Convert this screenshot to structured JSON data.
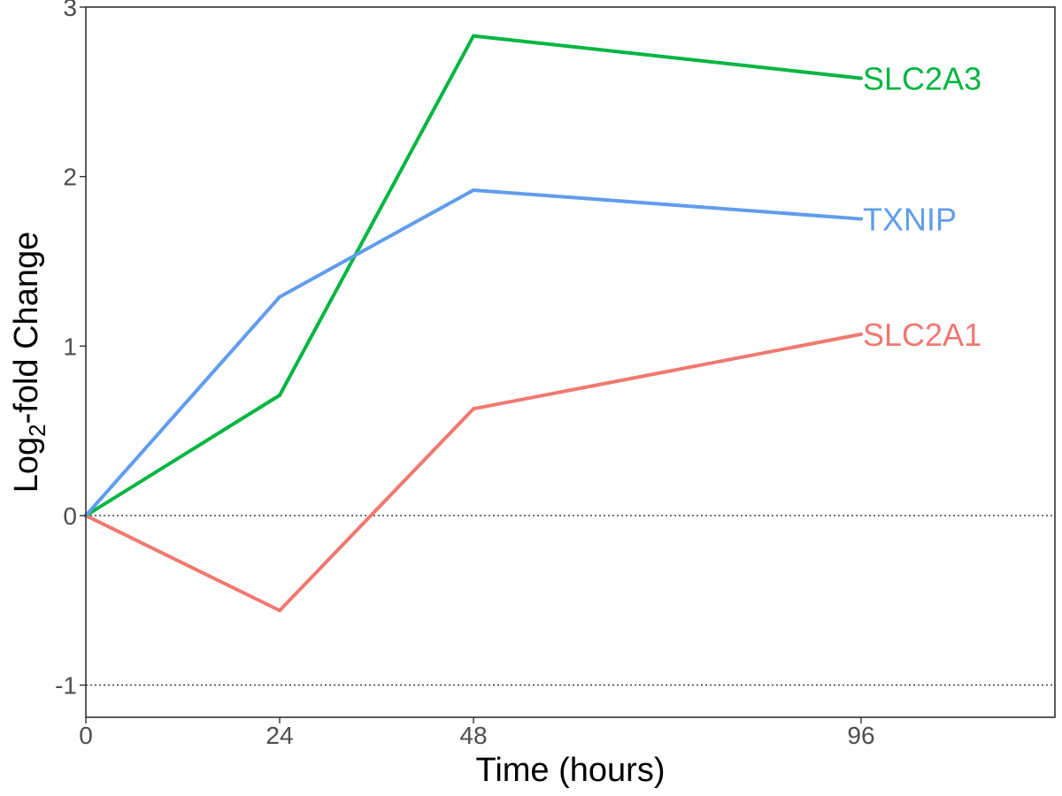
{
  "chart_data": {
    "type": "line",
    "xlabel": "Time (hours)",
    "ylabel_parts": {
      "pre": "Log",
      "sub": "2",
      "post": "-fold Change"
    },
    "x_ticks": [
      0,
      24,
      48,
      96
    ],
    "xlim": [
      0,
      120
    ],
    "y_ticks": [
      -1,
      0,
      1,
      2,
      3
    ],
    "ylim": [
      -1.19,
      3
    ],
    "reference_lines_y": [
      0,
      -1
    ],
    "grid": false,
    "legend": "direct-labels-at-line-ends",
    "series": [
      {
        "name": "SLC2A1",
        "color": "#F07870",
        "x": [
          0,
          24,
          48,
          96
        ],
        "values": [
          0,
          -0.56,
          0.63,
          1.07
        ]
      },
      {
        "name": "SLC2A3",
        "color": "#00B540",
        "x": [
          0,
          24,
          48,
          96
        ],
        "values": [
          0,
          0.71,
          2.83,
          2.58
        ]
      },
      {
        "name": "TXNIP",
        "color": "#619CEE",
        "x": [
          0,
          24,
          48,
          96
        ],
        "values": [
          0,
          1.29,
          1.92,
          1.75
        ]
      }
    ]
  }
}
